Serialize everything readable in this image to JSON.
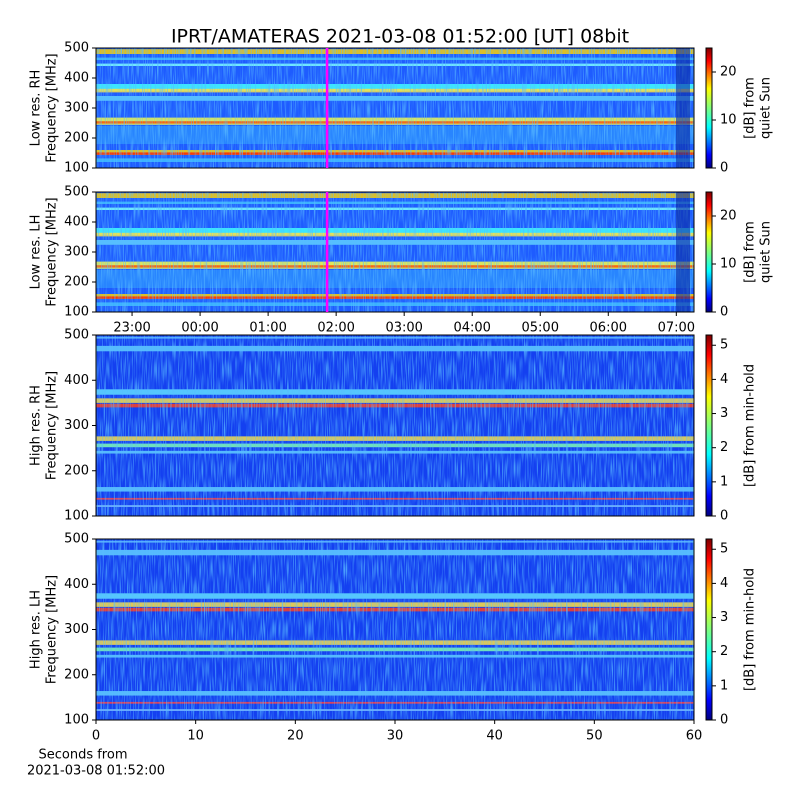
{
  "title": "IPRT/AMATERAS 2021-03-08 01:52:00 [UT]   08bit",
  "chart_data": [
    {
      "type": "heatmap",
      "ylabel": [
        "Low res. RH",
        "Frequency [MHz]"
      ],
      "ylim": [
        100,
        500
      ],
      "yticks": [
        100,
        200,
        300,
        400,
        500
      ],
      "xlim": [
        -1.53,
        7.26
      ],
      "vline": 1.8667,
      "vline_color": "#ff00ff",
      "colorbar": {
        "label": [
          "[dB] from",
          "quiet Sun"
        ],
        "lim": [
          0,
          25
        ],
        "ticks": [
          0,
          10,
          20
        ]
      }
    },
    {
      "type": "heatmap",
      "ylabel": [
        "Low res. LH",
        "Frequency [MHz]"
      ],
      "ylim": [
        100,
        500
      ],
      "yticks": [
        100,
        200,
        300,
        400,
        500
      ],
      "xlim": [
        -1.53,
        7.26
      ],
      "xticks": [
        {
          "value": -1,
          "label": "23:00"
        },
        {
          "value": 0,
          "label": "00:00"
        },
        {
          "value": 1,
          "label": "01:00"
        },
        {
          "value": 2,
          "label": "02:00"
        },
        {
          "value": 3,
          "label": "03:00"
        },
        {
          "value": 4,
          "label": "04:00"
        },
        {
          "value": 5,
          "label": "05:00"
        },
        {
          "value": 6,
          "label": "06:00"
        },
        {
          "value": 7,
          "label": "07:00"
        }
      ],
      "vline": 1.8667,
      "vline_color": "#ff00ff",
      "colorbar": {
        "label": [
          "[dB] from",
          "quiet Sun"
        ],
        "lim": [
          0,
          25
        ],
        "ticks": [
          0,
          10,
          20
        ]
      }
    },
    {
      "type": "heatmap",
      "ylabel": [
        "High res. RH",
        "Frequency [MHz]"
      ],
      "ylim": [
        100,
        500
      ],
      "yticks": [
        100,
        200,
        300,
        400,
        500
      ],
      "xlim": [
        0,
        60
      ],
      "colorbar": {
        "label": [
          "[dB] from min-hold"
        ],
        "lim": [
          0,
          5.3
        ],
        "ticks": [
          0,
          1,
          2,
          3,
          4,
          5
        ]
      }
    },
    {
      "type": "heatmap",
      "ylabel": [
        "High res. LH",
        "Frequency [MHz]"
      ],
      "ylim": [
        100,
        500
      ],
      "yticks": [
        100,
        200,
        300,
        400,
        500
      ],
      "xlim": [
        0,
        60
      ],
      "xticks": [
        0,
        10,
        20,
        30,
        40,
        50,
        60
      ],
      "xlabel": [
        "Seconds from",
        "2021-03-08 01:52:00"
      ],
      "colorbar": {
        "label": [
          "[dB] from min-hold"
        ],
        "lim": [
          0,
          5.3
        ],
        "ticks": [
          0,
          1,
          2,
          3,
          4,
          5
        ]
      }
    }
  ]
}
